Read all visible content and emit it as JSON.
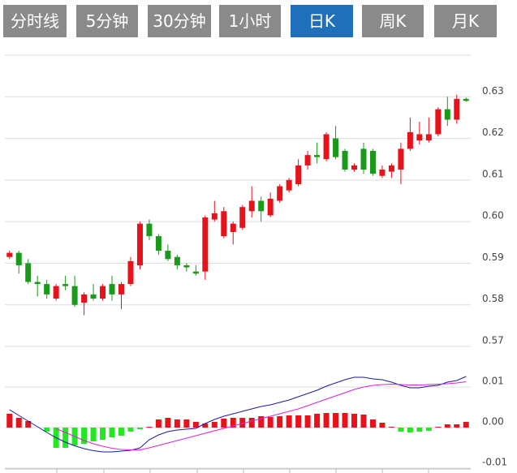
{
  "tabs": [
    {
      "label": "分时线",
      "active": false
    },
    {
      "label": "5分钟",
      "active": false
    },
    {
      "label": "30分钟",
      "active": false
    },
    {
      "label": "1小时",
      "active": false
    },
    {
      "label": "日K",
      "active": true
    },
    {
      "label": "周K",
      "active": false
    },
    {
      "label": "月K",
      "active": false
    }
  ],
  "chart_data": [
    {
      "type": "candlestick",
      "up_color": "#e8121b",
      "down_color": "#1a9a1a",
      "grid": true,
      "ylim": [
        0.57,
        0.64
      ],
      "yticks": [
        0.57,
        0.58,
        0.59,
        {
          "value": 0.6,
          "label": "0.60"
        },
        0.61,
        0.62,
        0.63
      ],
      "open": [
        0.5915,
        0.5925,
        0.59,
        0.5855,
        0.585,
        0.5815,
        0.585,
        0.5845,
        0.5805,
        0.5825,
        0.5815,
        0.585,
        0.5825,
        0.585,
        0.5895,
        0.5995,
        0.5965,
        0.593,
        0.5915,
        0.5895,
        0.588,
        0.588,
        0.6005,
        0.5965,
        0.5975,
        0.5985,
        0.6025,
        0.605,
        0.6015,
        0.605,
        0.6075,
        0.609,
        0.6135,
        0.616,
        0.615,
        0.62,
        0.617,
        0.6125,
        0.6175,
        0.617,
        0.611,
        0.612,
        0.6125,
        0.6175,
        0.6195,
        0.6195,
        0.621,
        0.627,
        0.6245,
        0.6295
      ],
      "high": [
        0.593,
        0.593,
        0.591,
        0.587,
        0.586,
        0.585,
        0.587,
        0.587,
        0.583,
        0.585,
        0.585,
        0.587,
        0.5855,
        0.5915,
        0.6,
        0.6005,
        0.597,
        0.5945,
        0.592,
        0.59,
        0.5895,
        0.6015,
        0.605,
        0.6035,
        0.6,
        0.604,
        0.6085,
        0.606,
        0.607,
        0.609,
        0.6105,
        0.615,
        0.617,
        0.619,
        0.6215,
        0.623,
        0.6175,
        0.614,
        0.619,
        0.6175,
        0.6135,
        0.614,
        0.619,
        0.625,
        0.624,
        0.625,
        0.6275,
        0.63,
        0.6305,
        0.6298
      ],
      "low": [
        0.591,
        0.5875,
        0.585,
        0.582,
        0.5815,
        0.581,
        0.5835,
        0.5795,
        0.5775,
        0.581,
        0.581,
        0.581,
        0.579,
        0.5845,
        0.5885,
        0.5955,
        0.592,
        0.5905,
        0.5885,
        0.588,
        0.587,
        0.586,
        0.6,
        0.596,
        0.5945,
        0.598,
        0.601,
        0.6,
        0.601,
        0.6045,
        0.607,
        0.6085,
        0.6125,
        0.614,
        0.6145,
        0.615,
        0.612,
        0.612,
        0.6115,
        0.611,
        0.6105,
        0.6105,
        0.609,
        0.617,
        0.6185,
        0.619,
        0.6205,
        0.623,
        0.6235,
        0.6288
      ],
      "close": [
        0.5925,
        0.5895,
        0.5855,
        0.585,
        0.5825,
        0.5845,
        0.5845,
        0.58,
        0.5825,
        0.5815,
        0.5845,
        0.5825,
        0.585,
        0.5905,
        0.5995,
        0.5965,
        0.593,
        0.591,
        0.5895,
        0.589,
        0.5875,
        0.601,
        0.602,
        0.6025,
        0.5995,
        0.6035,
        0.605,
        0.6025,
        0.6055,
        0.6085,
        0.61,
        0.6135,
        0.616,
        0.6155,
        0.621,
        0.6155,
        0.6125,
        0.6135,
        0.6125,
        0.6115,
        0.6125,
        0.6135,
        0.6175,
        0.6215,
        0.621,
        0.621,
        0.627,
        0.6245,
        0.6295,
        0.629
      ]
    },
    {
      "type": "macd",
      "grid": true,
      "ylim": [
        -0.01,
        0.02
      ],
      "yticks": [
        -0.01,
        {
          "value": 0,
          "label": "0.00"
        },
        0.01
      ],
      "series": [
        {
          "kind": "bar",
          "up_color": "#e8121b",
          "down_color": "#22e822",
          "values": [
            0.0034,
            0.0024,
            0.0016,
            0,
            -0.001,
            -0.005,
            -0.005,
            -0.0044,
            -0.004,
            -0.0034,
            -0.003,
            -0.0024,
            -0.002,
            -0.001,
            -0.0004,
            0.0002,
            0.002,
            0.0024,
            0.002,
            0.002,
            0.0014,
            0.001,
            0.0014,
            0.0022,
            0.0024,
            0.0024,
            0.0024,
            0.0028,
            0.0026,
            0.0028,
            0.003,
            0.003,
            0.003,
            0.0034,
            0.0036,
            0.0036,
            0.0036,
            0.0034,
            0.0032,
            0.002,
            0.0012,
            0.0002,
            -0.001,
            -0.0012,
            -0.001,
            -0.0008,
            0.0002,
            0.0008,
            0.0008,
            0.0014
          ]
        },
        {
          "kind": "line",
          "color": "#1a1aa8",
          "values": [
            0.0044,
            0.003,
            0.0016,
            0.0002,
            -0.0012,
            -0.0025,
            -0.0036,
            -0.0045,
            -0.0052,
            -0.0057,
            -0.006,
            -0.006,
            -0.0058,
            -0.0056,
            -0.005,
            -0.003,
            -0.0018,
            -0.001,
            -0.0006,
            -0.0004,
            -0.0002,
            0.001,
            0.002,
            0.0028,
            0.0034,
            0.004,
            0.0046,
            0.0052,
            0.0056,
            0.0062,
            0.0068,
            0.0076,
            0.0084,
            0.0092,
            0.0102,
            0.011,
            0.0118,
            0.0124,
            0.0124,
            0.012,
            0.0118,
            0.0112,
            0.0104,
            0.0098,
            0.0098,
            0.0102,
            0.0104,
            0.0112,
            0.0116,
            0.0126
          ]
        },
        {
          "kind": "line",
          "color": "#e020d8",
          "values": [
            null,
            null,
            null,
            null,
            null,
            -0.0003,
            -0.0012,
            -0.0022,
            -0.0032,
            -0.004,
            -0.0046,
            -0.0051,
            -0.0054,
            -0.0055,
            -0.0055,
            -0.005,
            -0.0044,
            -0.0038,
            -0.0032,
            -0.0026,
            -0.002,
            -0.0014,
            -0.0008,
            -0.0002,
            0.0004,
            0.001,
            0.0016,
            0.0022,
            0.0028,
            0.0034,
            0.004,
            0.0046,
            0.0054,
            0.0062,
            0.007,
            0.0078,
            0.0086,
            0.0094,
            0.01,
            0.0104,
            0.0106,
            0.0107,
            0.0106,
            0.0105,
            0.0105,
            0.0106,
            0.0107,
            0.0108,
            0.011,
            0.0113
          ]
        }
      ]
    }
  ]
}
